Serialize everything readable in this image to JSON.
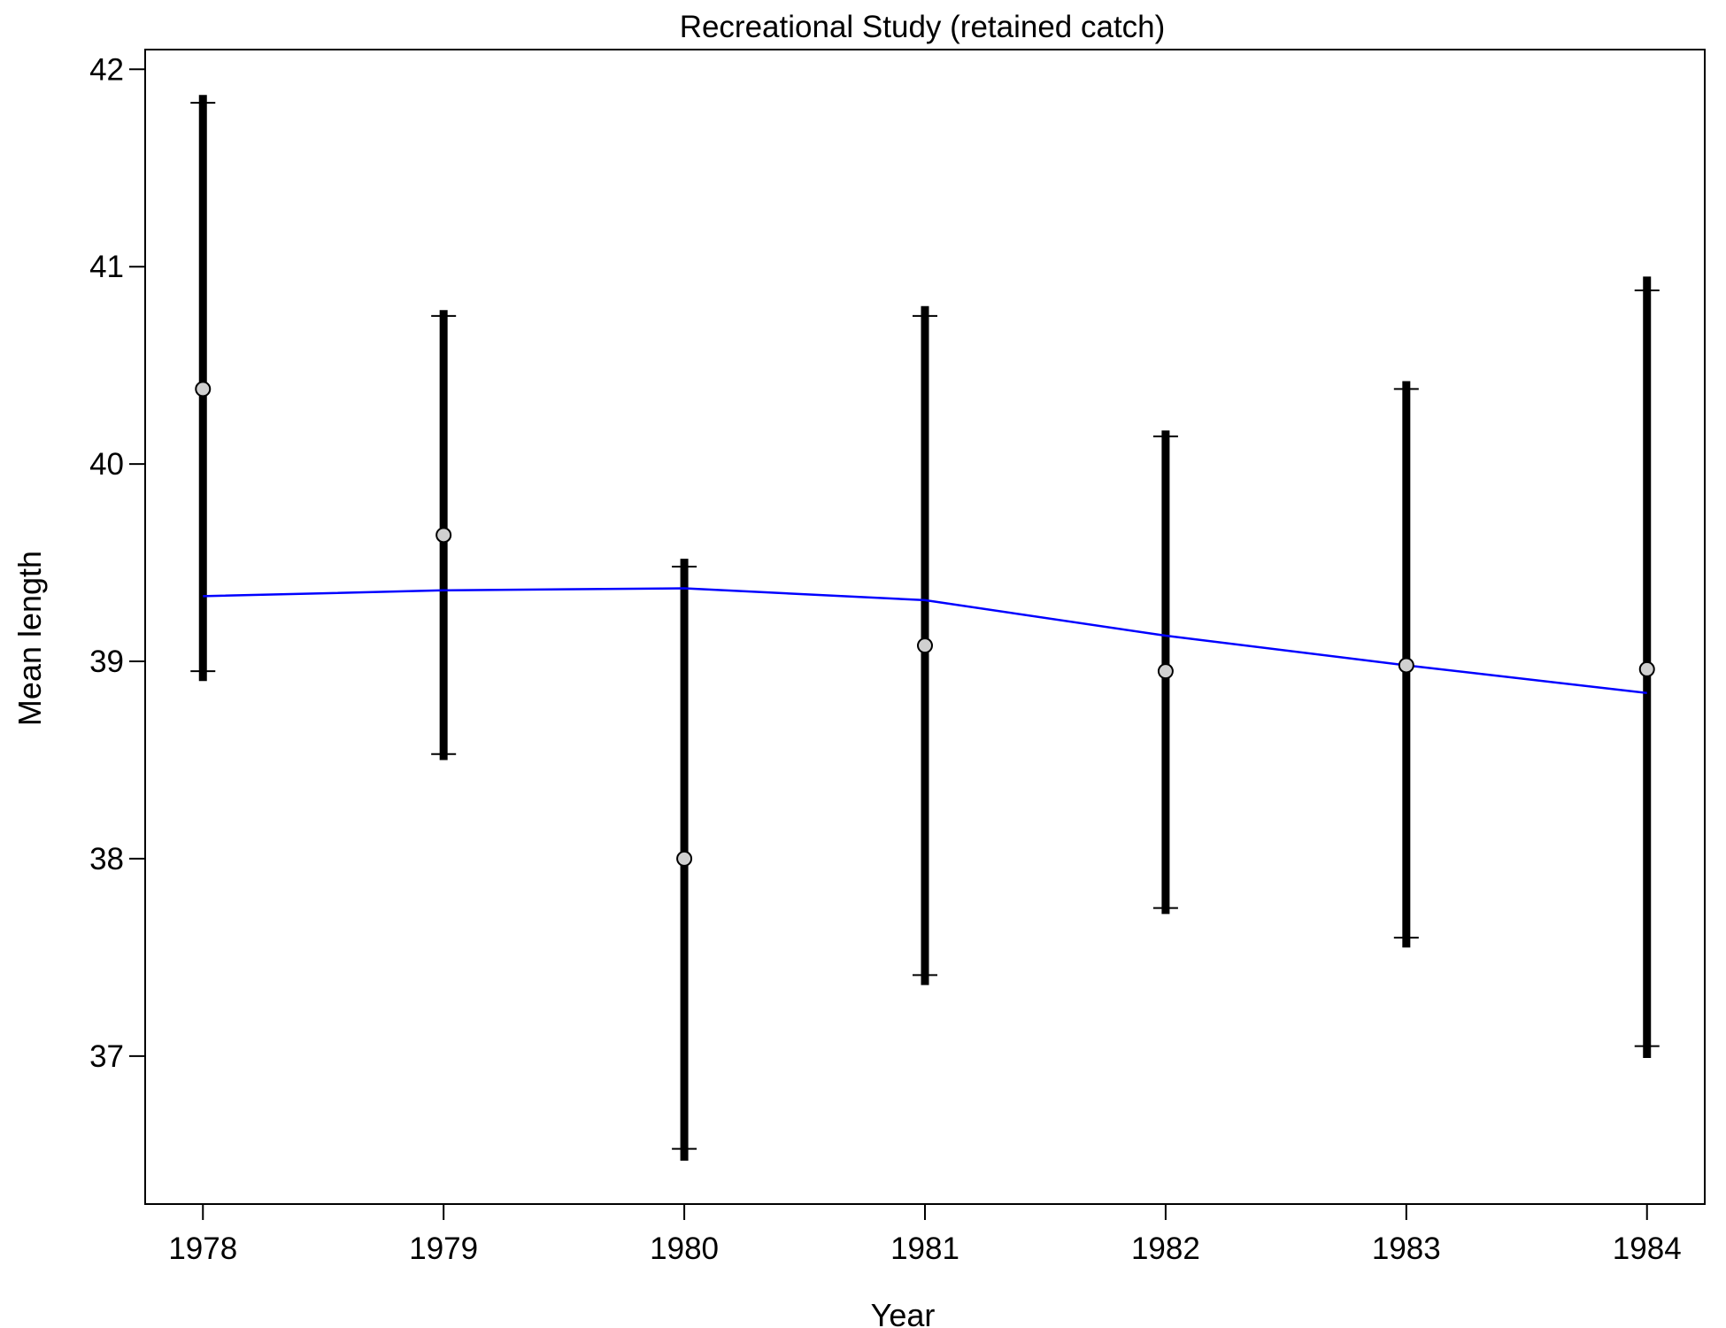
{
  "chart_data": {
    "type": "scatter",
    "title": "Recreational Study (retained catch)",
    "xlabel": "Year",
    "ylabel": "Mean length",
    "x": [
      1978,
      1979,
      1980,
      1981,
      1982,
      1983,
      1984
    ],
    "x_ticks": [
      "1978",
      "1979",
      "1980",
      "1981",
      "1982",
      "1983",
      "1984"
    ],
    "y_ticks": [
      "37",
      "38",
      "39",
      "40",
      "41",
      "42"
    ],
    "xlim": [
      1977.76,
      1984.24
    ],
    "ylim": [
      36.25,
      42.1
    ],
    "grid": false,
    "series": [
      {
        "kind": "points_with_error_bars",
        "values": [
          40.38,
          39.64,
          38.0,
          39.08,
          38.95,
          38.98,
          38.96
        ],
        "outer_lower": [
          38.9,
          38.5,
          36.47,
          37.36,
          37.72,
          37.55,
          36.99
        ],
        "outer_upper": [
          41.87,
          40.78,
          39.52,
          40.8,
          40.17,
          40.42,
          40.95
        ],
        "inner_lower": [
          38.95,
          38.53,
          36.53,
          37.41,
          37.75,
          37.6,
          37.05
        ],
        "inner_upper": [
          41.83,
          40.75,
          39.48,
          40.75,
          40.14,
          40.38,
          40.88
        ],
        "marker_fill": "#d0d0d0",
        "bar_color": "#000000"
      },
      {
        "kind": "line",
        "values": [
          39.33,
          39.36,
          39.37,
          39.31,
          39.13,
          38.98,
          38.84
        ],
        "color": "#0000ff"
      }
    ]
  }
}
